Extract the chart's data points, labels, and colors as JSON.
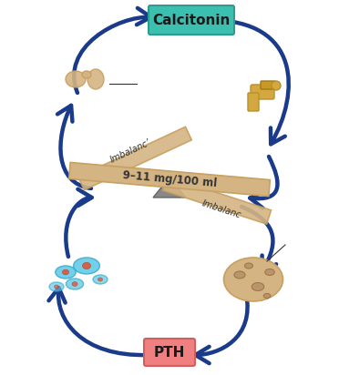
{
  "calcitonin_box_color": "#3dbfaf",
  "pth_box_color": "#f08080",
  "arrow_color": "#1a3a8a",
  "seesaw_color": "#d4b483",
  "seesaw_text": "9–11 mg/100 ml",
  "imbalance_left": "Imbalanc’",
  "imbalance_right": "Imbalanc",
  "calcitonin_label": "Calcitonin",
  "pth_label": "PTH",
  "bg_color": "#ffffff",
  "title_fontsize": 11,
  "label_fontsize": 9
}
